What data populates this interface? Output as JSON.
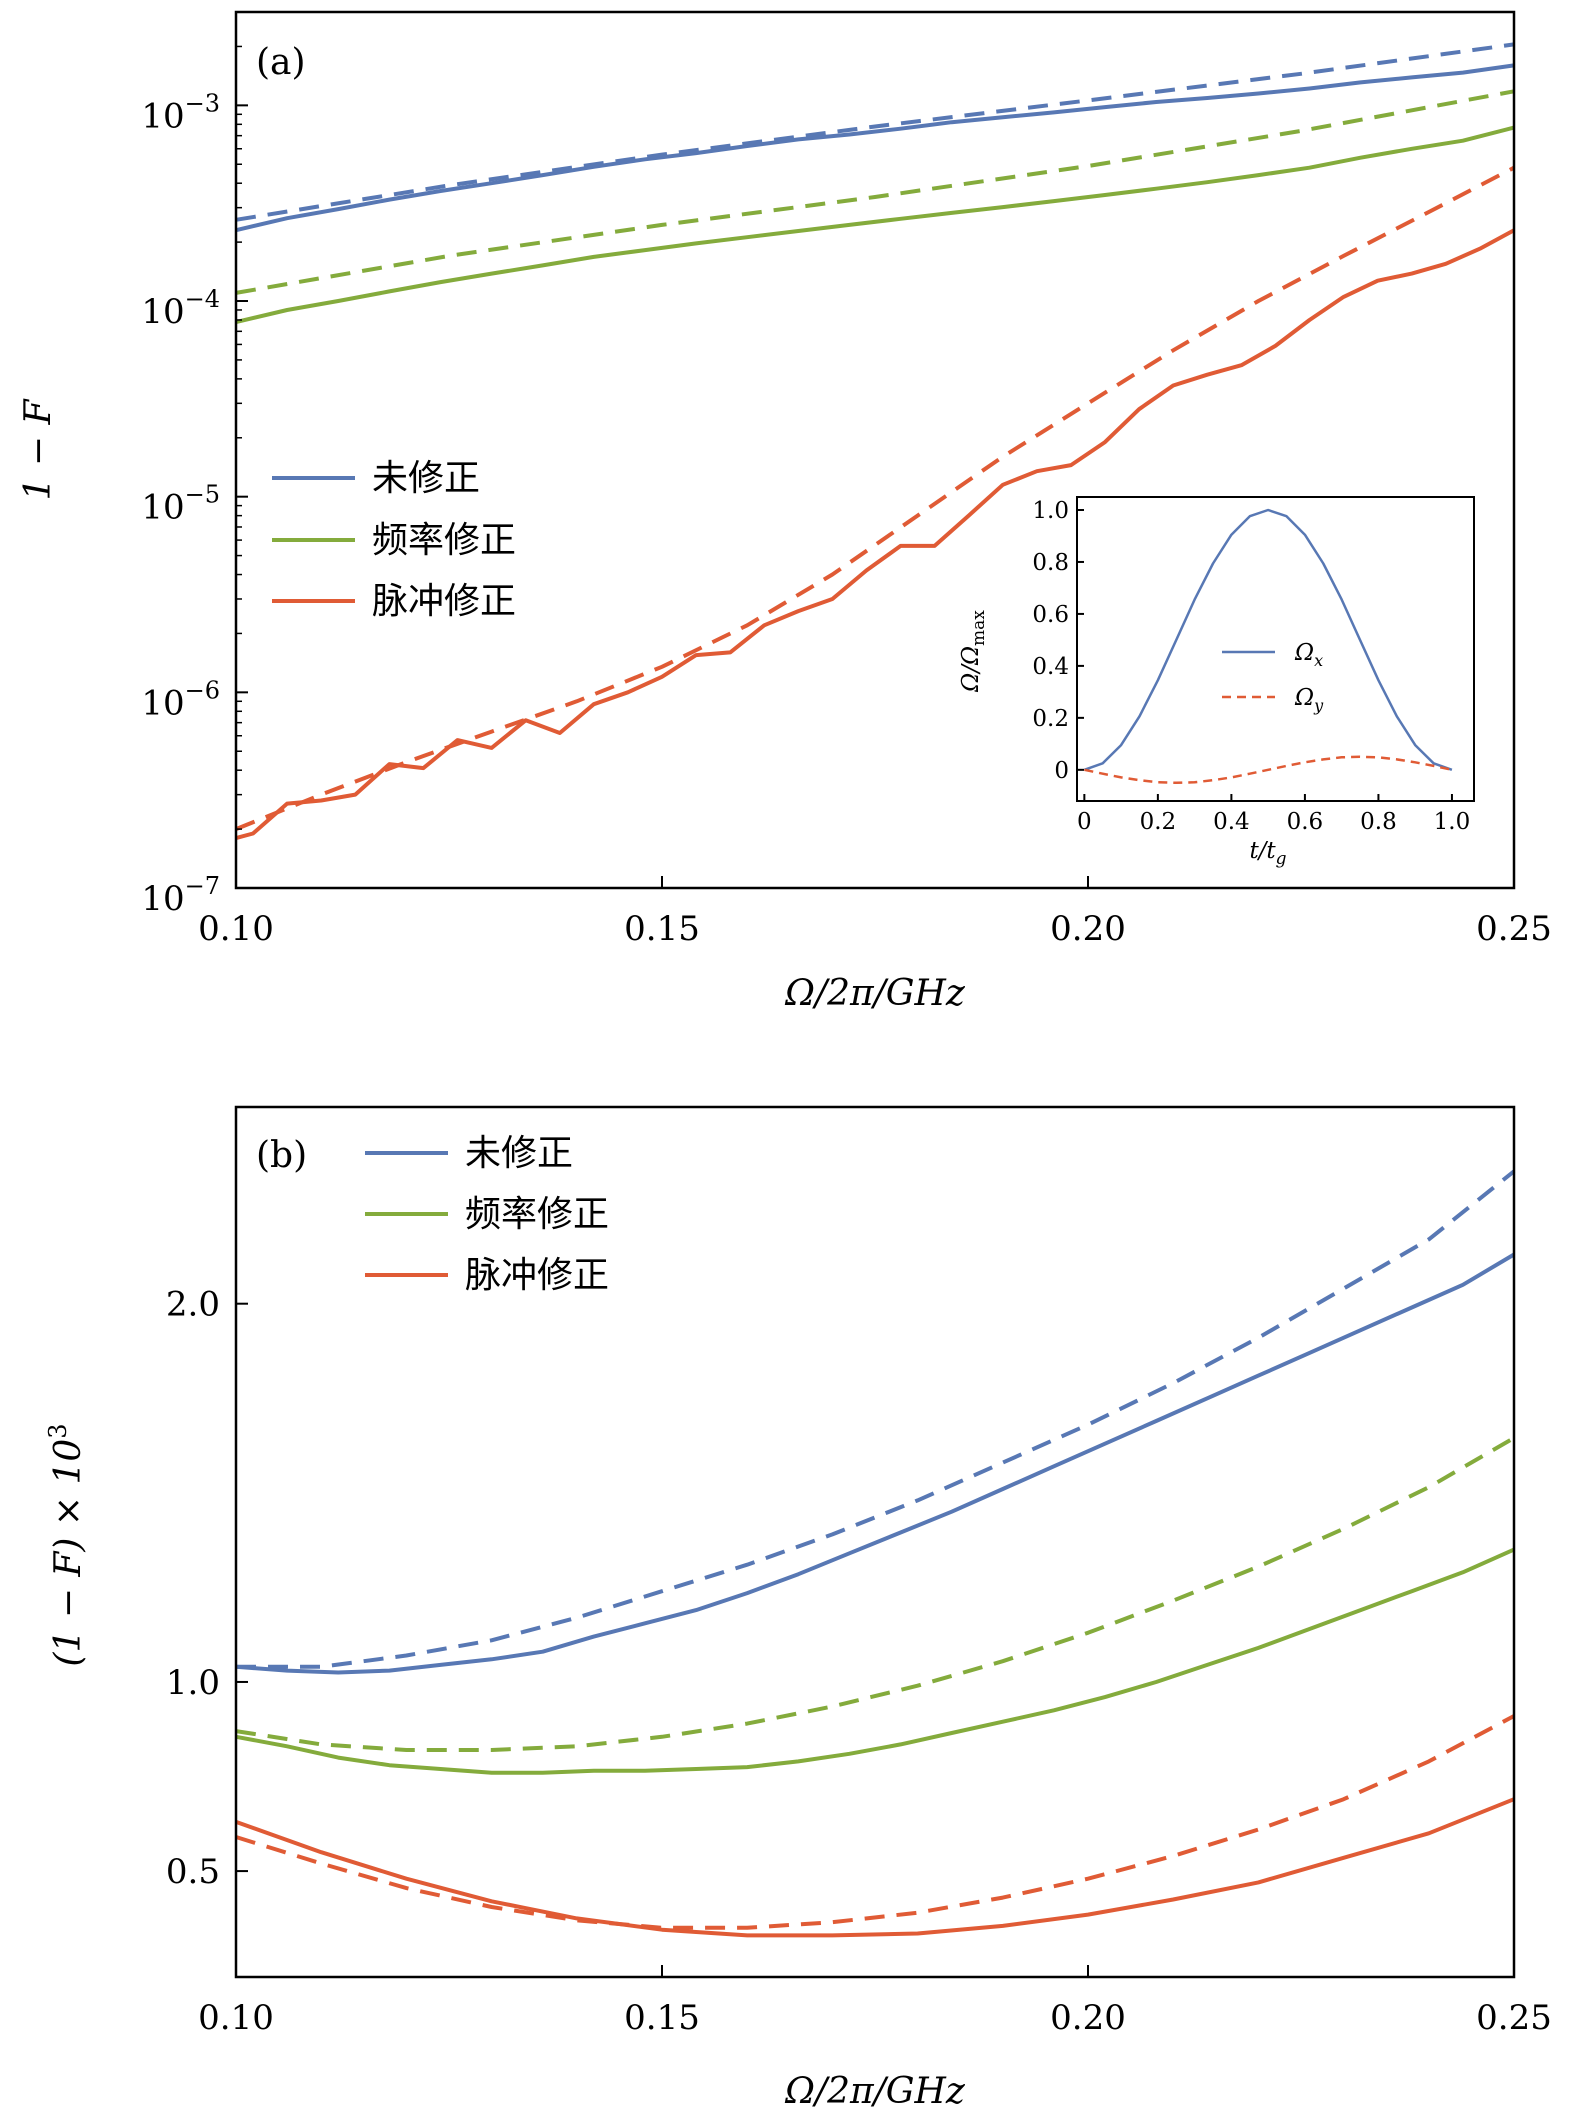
{
  "colors": {
    "uncorrected": "#5878b4",
    "frequency": "#84ab3c",
    "pulse": "#e05b35"
  },
  "chart_data": [
    {
      "id": "a",
      "type": "line",
      "panel_tag": "(a)",
      "xlabel": "Ω/2π/GHz",
      "ylabel": "1 − F",
      "xlim": [
        0.1,
        0.25
      ],
      "ylim": [
        1e-07,
        0.003
      ],
      "yscale": "log",
      "xticks": [
        {
          "value": 0.1,
          "label": "0.10"
        },
        {
          "value": 0.15,
          "label": "0.15"
        },
        {
          "value": 0.2,
          "label": "0.20"
        },
        {
          "value": 0.25,
          "label": "0.25"
        }
      ],
      "yticks": [
        {
          "value": 1e-07,
          "base": "10",
          "exp": "−7"
        },
        {
          "value": 1e-06,
          "base": "10",
          "exp": "−6"
        },
        {
          "value": 1e-05,
          "base": "10",
          "exp": "−5"
        },
        {
          "value": 0.0001,
          "base": "10",
          "exp": "−4"
        },
        {
          "value": 0.001,
          "base": "10",
          "exp": "−3"
        }
      ],
      "grid": false,
      "legend": {
        "position": "center-left"
      },
      "series": [
        {
          "name": "未修正",
          "color_key": "uncorrected",
          "style": "solid",
          "x": [
            0.1,
            0.106,
            0.112,
            0.118,
            0.124,
            0.13,
            0.136,
            0.142,
            0.148,
            0.154,
            0.16,
            0.166,
            0.172,
            0.178,
            0.184,
            0.19,
            0.196,
            0.202,
            0.208,
            0.214,
            0.22,
            0.226,
            0.232,
            0.238,
            0.244,
            0.25
          ],
          "y": [
            0.00023,
            0.000265,
            0.000295,
            0.00033,
            0.000365,
            0.0004,
            0.00044,
            0.000485,
            0.00053,
            0.00057,
            0.00062,
            0.00067,
            0.00071,
            0.00076,
            0.00082,
            0.00087,
            0.00092,
            0.00098,
            0.00104,
            0.00109,
            0.00115,
            0.00122,
            0.00131,
            0.00139,
            0.00147,
            0.0016
          ]
        },
        {
          "name": "",
          "color_key": "uncorrected",
          "style": "dashed",
          "x": [
            0.1,
            0.125,
            0.15,
            0.175,
            0.2,
            0.225,
            0.25
          ],
          "y": [
            0.00026,
            0.00039,
            0.00056,
            0.00078,
            0.00106,
            0.00145,
            0.00205
          ]
        },
        {
          "name": "频率修正",
          "color_key": "frequency",
          "style": "solid",
          "x": [
            0.1,
            0.106,
            0.112,
            0.118,
            0.124,
            0.13,
            0.136,
            0.142,
            0.148,
            0.154,
            0.16,
            0.166,
            0.172,
            0.178,
            0.184,
            0.19,
            0.196,
            0.202,
            0.208,
            0.214,
            0.22,
            0.226,
            0.232,
            0.238,
            0.244,
            0.25
          ],
          "y": [
            7.8e-05,
            9e-05,
            0.0001,
            0.000112,
            0.000125,
            0.000138,
            0.000152,
            0.000168,
            0.000182,
            0.000197,
            0.000212,
            0.000228,
            0.000245,
            0.000263,
            0.000282,
            0.000302,
            0.000324,
            0.000348,
            0.000375,
            0.000405,
            0.00044,
            0.00048,
            0.00054,
            0.0006,
            0.00066,
            0.00077
          ]
        },
        {
          "name": "",
          "color_key": "frequency",
          "style": "dashed",
          "x": [
            0.1,
            0.125,
            0.15,
            0.175,
            0.2,
            0.225,
            0.25
          ],
          "y": [
            0.00011,
            0.00017,
            0.000245,
            0.00034,
            0.00049,
            0.00074,
            0.00118
          ]
        },
        {
          "name": "脉冲修正",
          "color_key": "pulse",
          "style": "solid",
          "x": [
            0.1,
            0.102,
            0.106,
            0.11,
            0.114,
            0.118,
            0.122,
            0.126,
            0.13,
            0.134,
            0.138,
            0.142,
            0.146,
            0.15,
            0.154,
            0.158,
            0.162,
            0.166,
            0.17,
            0.174,
            0.178,
            0.182,
            0.186,
            0.19,
            0.194,
            0.198,
            0.202,
            0.206,
            0.21,
            0.214,
            0.218,
            0.222,
            0.226,
            0.23,
            0.234,
            0.238,
            0.242,
            0.246,
            0.25
          ],
          "y": [
            1.8e-07,
            1.9e-07,
            2.7e-07,
            2.8e-07,
            3e-07,
            4.3e-07,
            4.1e-07,
            5.7e-07,
            5.2e-07,
            7.2e-07,
            6.2e-07,
            8.7e-07,
            1e-06,
            1.2e-06,
            1.55e-06,
            1.6e-06,
            2.2e-06,
            2.6e-06,
            3e-06,
            4.2e-06,
            5.6e-06,
            5.6e-06,
            8e-06,
            1.15e-05,
            1.35e-05,
            1.45e-05,
            1.9e-05,
            2.8e-05,
            3.7e-05,
            4.2e-05,
            4.7e-05,
            5.9e-05,
            8e-05,
            0.000105,
            0.000127,
            0.000138,
            0.000155,
            0.000185,
            0.00023
          ]
        },
        {
          "name": "",
          "color_key": "pulse",
          "style": "dashed",
          "x": [
            0.1,
            0.11,
            0.12,
            0.13,
            0.14,
            0.15,
            0.16,
            0.17,
            0.18,
            0.19,
            0.2,
            0.21,
            0.22,
            0.23,
            0.24,
            0.25
          ],
          "y": [
            2e-07,
            3e-07,
            4.4e-07,
            6.3e-07,
            9e-07,
            1.35e-06,
            2.2e-06,
            4e-06,
            8e-06,
            1.6e-05,
            3e-05,
            5.6e-05,
            0.0001,
            0.00017,
            0.000285,
            0.00048
          ]
        }
      ],
      "inset": {
        "type": "line",
        "xlabel": "t/t_g",
        "ylabel": "Ω/Ω_max",
        "xlim": [
          -0.02,
          1.06
        ],
        "ylim": [
          -0.12,
          1.05
        ],
        "xticks": [
          {
            "value": 0,
            "label": "0"
          },
          {
            "value": 0.2,
            "label": "0.2"
          },
          {
            "value": 0.4,
            "label": "0.4"
          },
          {
            "value": 0.6,
            "label": "0.6"
          },
          {
            "value": 0.8,
            "label": "0.8"
          },
          {
            "value": 1.0,
            "label": "1.0"
          }
        ],
        "yticks": [
          {
            "value": 0,
            "label": "0"
          },
          {
            "value": 0.2,
            "label": "0.2"
          },
          {
            "value": 0.4,
            "label": "0.4"
          },
          {
            "value": 0.6,
            "label": "0.6"
          },
          {
            "value": 0.8,
            "label": "0.8"
          },
          {
            "value": 1.0,
            "label": "1.0"
          }
        ],
        "legend": {
          "position": "center-right"
        },
        "series": [
          {
            "name": "Ω_x",
            "color_key": "uncorrected",
            "style": "solid",
            "x": [
              0,
              0.05,
              0.1,
              0.15,
              0.2,
              0.25,
              0.3,
              0.35,
              0.4,
              0.45,
              0.5,
              0.55,
              0.6,
              0.65,
              0.7,
              0.75,
              0.8,
              0.85,
              0.9,
              0.95,
              1.0
            ],
            "y": [
              0,
              0.025,
              0.095,
              0.206,
              0.345,
              0.5,
              0.655,
              0.794,
              0.905,
              0.976,
              1.0,
              0.976,
              0.905,
              0.794,
              0.655,
              0.5,
              0.345,
              0.206,
              0.095,
              0.025,
              0
            ]
          },
          {
            "name": "Ω_y",
            "color_key": "pulse",
            "style": "dashed",
            "x": [
              0,
              0.05,
              0.1,
              0.15,
              0.2,
              0.25,
              0.3,
              0.35,
              0.4,
              0.45,
              0.5,
              0.55,
              0.6,
              0.65,
              0.7,
              0.75,
              0.8,
              0.85,
              0.9,
              0.95,
              1.0
            ],
            "y": [
              0,
              -0.015,
              -0.029,
              -0.04,
              -0.048,
              -0.05,
              -0.048,
              -0.04,
              -0.029,
              -0.015,
              0,
              0.015,
              0.029,
              0.04,
              0.048,
              0.05,
              0.048,
              0.04,
              0.029,
              0.015,
              0
            ]
          }
        ]
      }
    },
    {
      "id": "b",
      "type": "line",
      "panel_tag": "(b)",
      "xlabel": "Ω/2π/GHz",
      "ylabel": "(1 − F) × 10³",
      "xlim": [
        0.1,
        0.25
      ],
      "ylim": [
        0.22,
        2.52
      ],
      "yscale": "linear",
      "xticks": [
        {
          "value": 0.1,
          "label": "0.10"
        },
        {
          "value": 0.15,
          "label": "0.15"
        },
        {
          "value": 0.2,
          "label": "0.20"
        },
        {
          "value": 0.25,
          "label": "0.25"
        }
      ],
      "yticks": [
        {
          "value": 0.5,
          "label": "0.5"
        },
        {
          "value": 1.0,
          "label": "1.0"
        },
        {
          "value": 2.0,
          "label": "2.0"
        }
      ],
      "grid": false,
      "legend": {
        "position": "top-left"
      },
      "series": [
        {
          "name": "未修正",
          "color_key": "uncorrected",
          "style": "solid",
          "x": [
            0.1,
            0.106,
            0.112,
            0.118,
            0.124,
            0.13,
            0.136,
            0.142,
            0.148,
            0.154,
            0.16,
            0.166,
            0.172,
            0.178,
            0.184,
            0.19,
            0.196,
            0.202,
            0.208,
            0.214,
            0.22,
            0.226,
            0.232,
            0.238,
            0.244,
            0.25
          ],
          "y": [
            1.04,
            1.03,
            1.025,
            1.03,
            1.045,
            1.06,
            1.08,
            1.12,
            1.155,
            1.19,
            1.235,
            1.285,
            1.34,
            1.395,
            1.45,
            1.51,
            1.57,
            1.63,
            1.69,
            1.75,
            1.81,
            1.87,
            1.93,
            1.99,
            2.05,
            2.13
          ]
        },
        {
          "name": "",
          "color_key": "uncorrected",
          "style": "dashed",
          "x": [
            0.1,
            0.11,
            0.12,
            0.13,
            0.14,
            0.15,
            0.16,
            0.17,
            0.18,
            0.19,
            0.2,
            0.21,
            0.22,
            0.23,
            0.24,
            0.25
          ],
          "y": [
            1.04,
            1.04,
            1.07,
            1.11,
            1.17,
            1.24,
            1.31,
            1.39,
            1.48,
            1.58,
            1.68,
            1.79,
            1.91,
            2.04,
            2.17,
            2.35
          ]
        },
        {
          "name": "频率修正",
          "color_key": "frequency",
          "style": "solid",
          "x": [
            0.1,
            0.106,
            0.112,
            0.118,
            0.124,
            0.13,
            0.136,
            0.142,
            0.148,
            0.154,
            0.16,
            0.166,
            0.172,
            0.178,
            0.184,
            0.19,
            0.196,
            0.202,
            0.208,
            0.214,
            0.22,
            0.226,
            0.232,
            0.238,
            0.244,
            0.25
          ],
          "y": [
            0.855,
            0.83,
            0.8,
            0.78,
            0.77,
            0.76,
            0.76,
            0.765,
            0.765,
            0.77,
            0.775,
            0.79,
            0.81,
            0.835,
            0.865,
            0.895,
            0.925,
            0.96,
            1.0,
            1.045,
            1.09,
            1.14,
            1.19,
            1.24,
            1.29,
            1.35
          ]
        },
        {
          "name": "",
          "color_key": "frequency",
          "style": "dashed",
          "x": [
            0.1,
            0.11,
            0.12,
            0.13,
            0.14,
            0.15,
            0.16,
            0.17,
            0.18,
            0.19,
            0.2,
            0.21,
            0.22,
            0.23,
            0.24,
            0.25
          ],
          "y": [
            0.87,
            0.835,
            0.82,
            0.82,
            0.83,
            0.855,
            0.89,
            0.935,
            0.99,
            1.055,
            1.13,
            1.215,
            1.305,
            1.405,
            1.515,
            1.645
          ]
        },
        {
          "name": "脉冲修正",
          "color_key": "pulse",
          "style": "solid",
          "x": [
            0.1,
            0.11,
            0.12,
            0.13,
            0.14,
            0.15,
            0.16,
            0.17,
            0.18,
            0.19,
            0.2,
            0.21,
            0.22,
            0.23,
            0.24,
            0.25
          ],
          "y": [
            0.63,
            0.55,
            0.48,
            0.42,
            0.375,
            0.345,
            0.33,
            0.33,
            0.335,
            0.355,
            0.385,
            0.425,
            0.47,
            0.535,
            0.6,
            0.69
          ]
        },
        {
          "name": "",
          "color_key": "pulse",
          "style": "dashed",
          "x": [
            0.1,
            0.11,
            0.12,
            0.13,
            0.14,
            0.15,
            0.16,
            0.17,
            0.18,
            0.19,
            0.2,
            0.21,
            0.22,
            0.23,
            0.24,
            0.25
          ],
          "y": [
            0.59,
            0.52,
            0.455,
            0.405,
            0.37,
            0.35,
            0.35,
            0.365,
            0.39,
            0.43,
            0.48,
            0.54,
            0.61,
            0.69,
            0.79,
            0.91
          ]
        }
      ]
    }
  ]
}
